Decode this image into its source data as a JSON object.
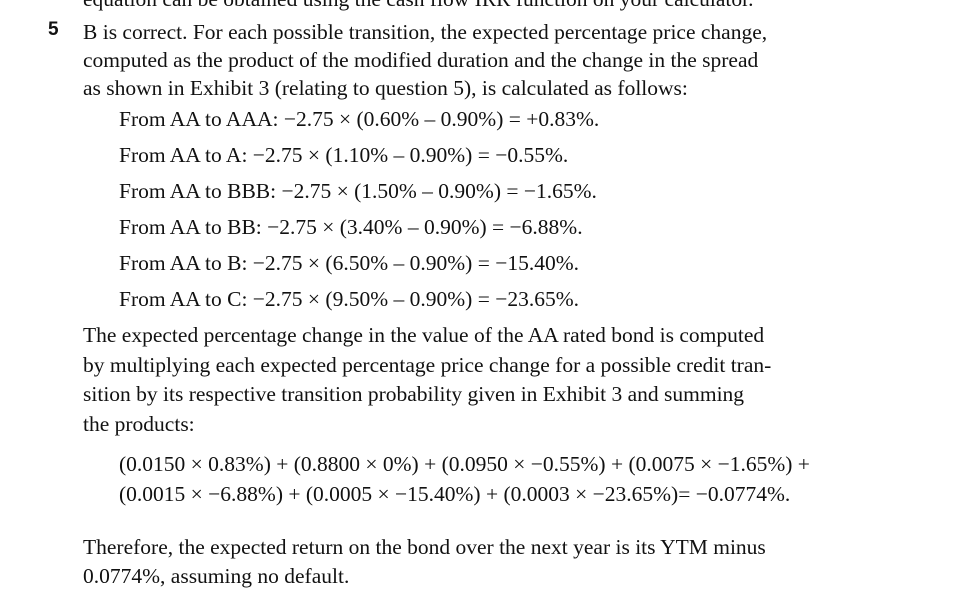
{
  "top_fragment": "equation can be obtained using the cash flow IRR function on your calculator.",
  "item": {
    "number": "5",
    "intro_lines": [
      "B is correct. For each possible transition, the expected percentage price change,",
      "computed as the product of the modified duration and the change in the spread",
      "as shown in Exhibit 3 (relating to question 5), is calculated as follows:"
    ],
    "calculations": [
      "From AA to AAA: −2.75 × (0.60% – 0.90%) = +0.83%.",
      "From AA to A: −2.75 × (1.10% – 0.90%) = −0.55%.",
      "From AA to BBB: −2.75 × (1.50% – 0.90%) = −1.65%.",
      "From AA to BB: −2.75 × (3.40% – 0.90%) = −6.88%.",
      "From AA to B: −2.75 × (6.50% – 0.90%) = −15.40%.",
      "From AA to C: −2.75 × (9.50% – 0.90%) = −23.65%."
    ],
    "explanation_lines": [
      "The expected percentage change in the value of the AA rated bond is computed",
      "by multiplying each expected percentage price change for a possible credit tran-",
      "sition by its respective transition probability given in Exhibit 3 and summing",
      "the products:"
    ],
    "formula_lines": [
      "(0.0150 × 0.83%) + (0.8800 × 0%) + (0.0950 × −0.55%) + (0.0075 × −1.65%) +",
      "(0.0015 × −6.88%) + (0.0005 × −15.40%) + (0.0003 × −23.65%)= −0.0774%."
    ],
    "conclusion_lines": [
      "Therefore, the expected return on the bond over the next year is its YTM minus",
      "0.0774%, assuming no default."
    ]
  }
}
